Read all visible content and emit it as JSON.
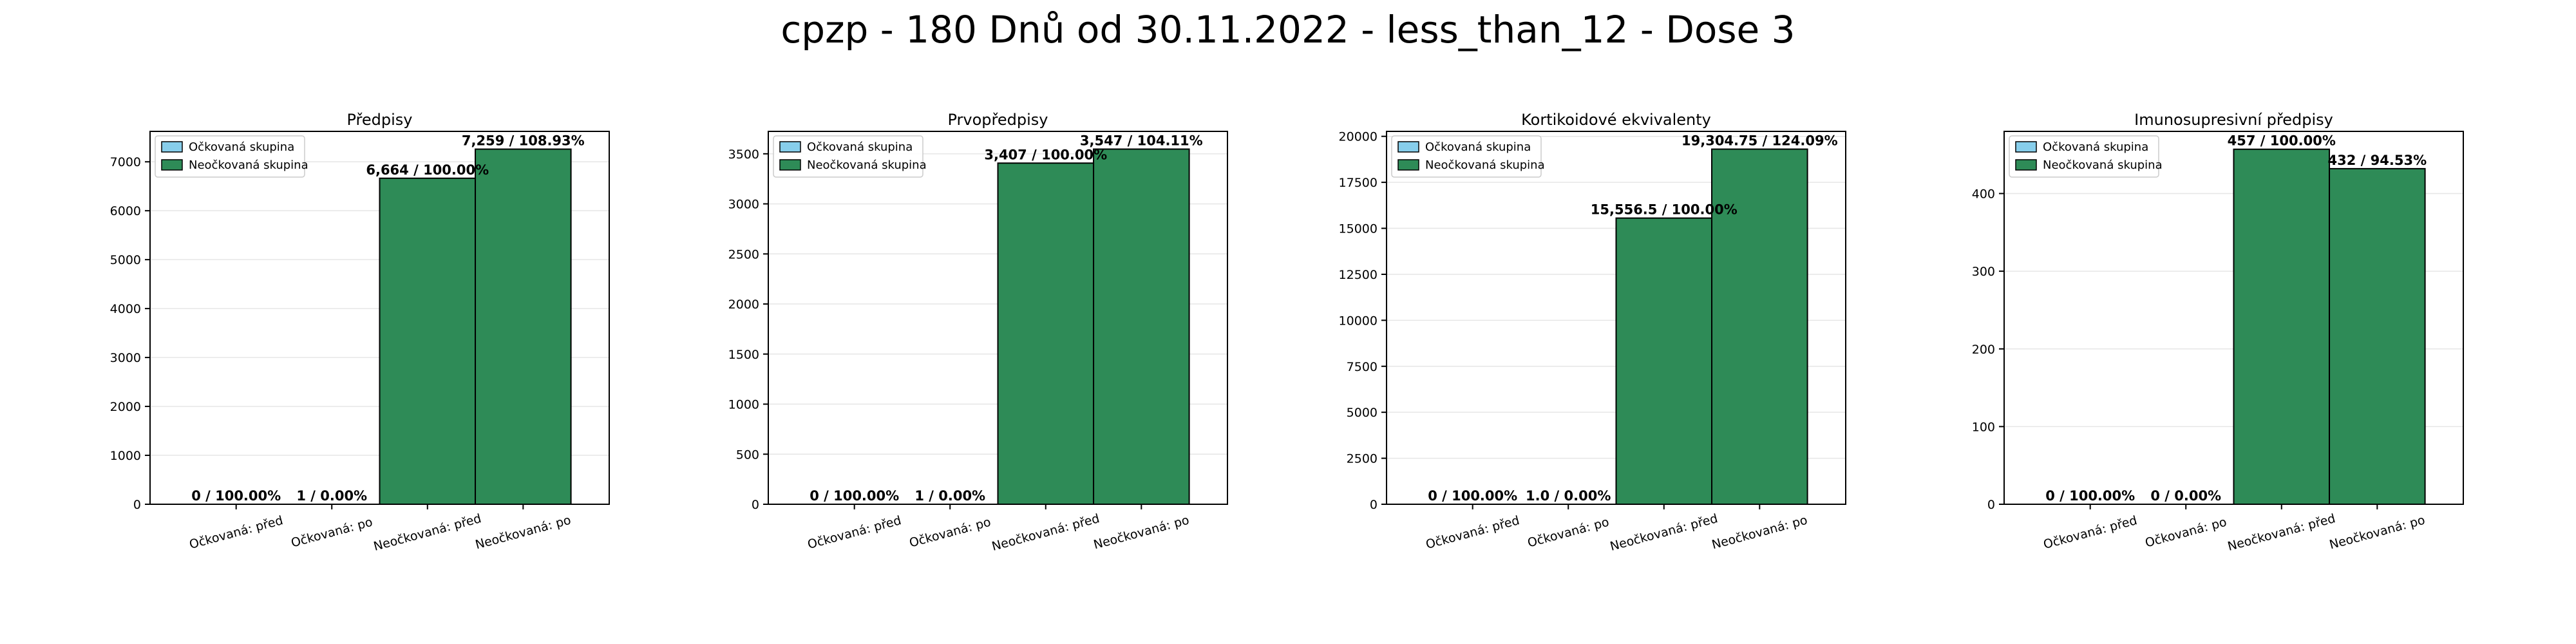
{
  "suptitle": "cpzp - 180 Dnů od 30.11.2022 - less_than_12 - Dose 3",
  "colors": {
    "vaccinated": "#87ceeb",
    "unvaccinated": "#2e8b57",
    "edge": "#000000",
    "grid": "#e6e6e6"
  },
  "legend": [
    "Očkovaná skupina",
    "Neočkovaná skupina"
  ],
  "chart_data": [
    {
      "type": "bar",
      "title": "Předpisy",
      "categories": [
        "Očkovaná: před",
        "Očkovaná: po",
        "Neočkovaná: před",
        "Neočkovaná: po"
      ],
      "values": [
        0,
        1,
        6664,
        7259
      ],
      "bar_labels": [
        "0 / 100.00%",
        "1 / 0.00%",
        "6,664 / 100.00%",
        "7,259 / 108.93%"
      ],
      "group": [
        "vaccinated",
        "vaccinated",
        "unvaccinated",
        "unvaccinated"
      ],
      "ylim": [
        0,
        7622
      ],
      "yticks": [
        0,
        1000,
        2000,
        3000,
        4000,
        5000,
        6000,
        7000
      ],
      "legend_position": "upper-left",
      "grid": true
    },
    {
      "type": "bar",
      "title": "Prvopředpisy",
      "categories": [
        "Očkovaná: před",
        "Očkovaná: po",
        "Neočkovaná: před",
        "Neočkovaná: po"
      ],
      "values": [
        0,
        1,
        3407,
        3547
      ],
      "bar_labels": [
        "0 / 100.00%",
        "1 / 0.00%",
        "3,407 / 100.00%",
        "3,547 / 104.11%"
      ],
      "group": [
        "vaccinated",
        "vaccinated",
        "unvaccinated",
        "unvaccinated"
      ],
      "ylim": [
        0,
        3724
      ],
      "yticks": [
        0,
        500,
        1000,
        1500,
        2000,
        2500,
        3000,
        3500
      ],
      "legend_position": "upper-left",
      "grid": true
    },
    {
      "type": "bar",
      "title": "Kortikoidové ekvivalenty",
      "categories": [
        "Očkovaná: před",
        "Očkovaná: po",
        "Neočkovaná: před",
        "Neočkovaná: po"
      ],
      "values": [
        0,
        1.0,
        15556.5,
        19304.75
      ],
      "bar_labels": [
        "0 / 100.00%",
        "1.0 / 0.00%",
        "15,556.5 / 100.00%",
        "19,304.75 / 124.09%"
      ],
      "group": [
        "vaccinated",
        "vaccinated",
        "unvaccinated",
        "unvaccinated"
      ],
      "ylim": [
        0,
        20270
      ],
      "yticks": [
        0,
        2500,
        5000,
        7500,
        10000,
        12500,
        15000,
        17500,
        20000
      ],
      "legend_position": "upper-left",
      "grid": true
    },
    {
      "type": "bar",
      "title": "Imunosupresivní předpisy",
      "categories": [
        "Očkovaná: před",
        "Očkovaná: po",
        "Neočkovaná: před",
        "Neočkovaná: po"
      ],
      "values": [
        0,
        0,
        457,
        432
      ],
      "bar_labels": [
        "0 / 100.00%",
        "0 / 0.00%",
        "457 / 100.00%",
        "432 / 94.53%"
      ],
      "group": [
        "vaccinated",
        "vaccinated",
        "unvaccinated",
        "unvaccinated"
      ],
      "ylim": [
        0,
        480
      ],
      "yticks": [
        0,
        100,
        200,
        300,
        400
      ],
      "legend_position": "upper-left",
      "grid": true
    }
  ]
}
